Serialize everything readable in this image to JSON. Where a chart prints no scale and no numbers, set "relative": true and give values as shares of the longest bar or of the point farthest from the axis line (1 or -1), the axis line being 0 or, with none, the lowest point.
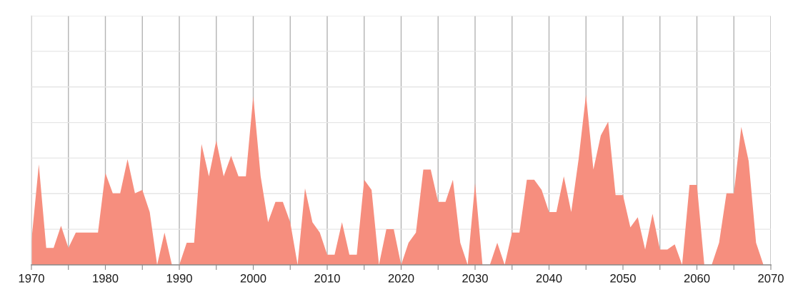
{
  "chart_data": {
    "type": "area",
    "relative": true,
    "color": "#f68e7e",
    "x": [
      1970,
      1971,
      1972,
      1973,
      1974,
      1975,
      1976,
      1977,
      1978,
      1979,
      1980,
      1981,
      1982,
      1983,
      1984,
      1985,
      1986,
      1987,
      1988,
      1989,
      1990,
      1991,
      1992,
      1993,
      1994,
      1995,
      1996,
      1997,
      1998,
      1999,
      2000,
      2001,
      2002,
      2003,
      2004,
      2005,
      2006,
      2007,
      2008,
      2009,
      2010,
      2011,
      2012,
      2013,
      2014,
      2015,
      2016,
      2017,
      2018,
      2019,
      2020,
      2021,
      2022,
      2023,
      2024,
      2025,
      2026,
      2027,
      2028,
      2029,
      2030,
      2031,
      2032,
      2033,
      2034,
      2035,
      2036,
      2037,
      2038,
      2039,
      2040,
      2041,
      2042,
      2043,
      2044,
      2045,
      2046,
      2047,
      2048,
      2049,
      2050,
      2051,
      2052,
      2053,
      2054,
      2055,
      2056,
      2057,
      2058,
      2059,
      2060,
      2061,
      2062,
      2063,
      2064,
      2065,
      2066,
      2067,
      2068,
      2069
    ],
    "values": [
      0.14,
      0.59,
      0.1,
      0.1,
      0.23,
      0.1,
      0.19,
      0.19,
      0.19,
      0.19,
      0.54,
      0.42,
      0.42,
      0.62,
      0.42,
      0.44,
      0.31,
      0,
      0.19,
      0,
      0,
      0.13,
      0.13,
      0.71,
      0.52,
      0.73,
      0.52,
      0.64,
      0.52,
      0.52,
      0.99,
      0.52,
      0.25,
      0.37,
      0.37,
      0.25,
      0,
      0.45,
      0.25,
      0.19,
      0.06,
      0.06,
      0.25,
      0.06,
      0.06,
      0.5,
      0.44,
      0,
      0.21,
      0.21,
      0,
      0.13,
      0.19,
      0.56,
      0.56,
      0.37,
      0.37,
      0.5,
      0.13,
      0,
      0.48,
      0,
      0,
      0.13,
      0,
      0.19,
      0.19,
      0.5,
      0.5,
      0.44,
      0.31,
      0.31,
      0.52,
      0.31,
      0.62,
      1,
      0.56,
      0.76,
      0.84,
      0.41,
      0.41,
      0.22,
      0.28,
      0.09,
      0.3,
      0.09,
      0.09,
      0.12,
      0,
      0.47,
      0.47,
      0,
      0,
      0.13,
      0.42,
      0.42,
      0.81,
      0.61,
      0.13,
      0
    ],
    "xlim": [
      1970,
      2070
    ],
    "xticks": [
      1970,
      {
        "value": 1975,
        "label": null
      },
      1980,
      {
        "value": 1985,
        "label": null
      },
      1990,
      {
        "value": 1995,
        "label": null
      },
      2000,
      {
        "value": 2005,
        "label": null
      },
      2010,
      {
        "value": 2015,
        "label": null
      },
      2020,
      {
        "value": 2025,
        "label": null
      },
      2030,
      {
        "value": 2035,
        "label": null
      },
      2040,
      {
        "value": 2045,
        "label": null
      },
      2050,
      {
        "value": 2055,
        "label": null
      },
      2060,
      {
        "value": 2065,
        "label": null
      },
      2070
    ],
    "grid": true
  }
}
